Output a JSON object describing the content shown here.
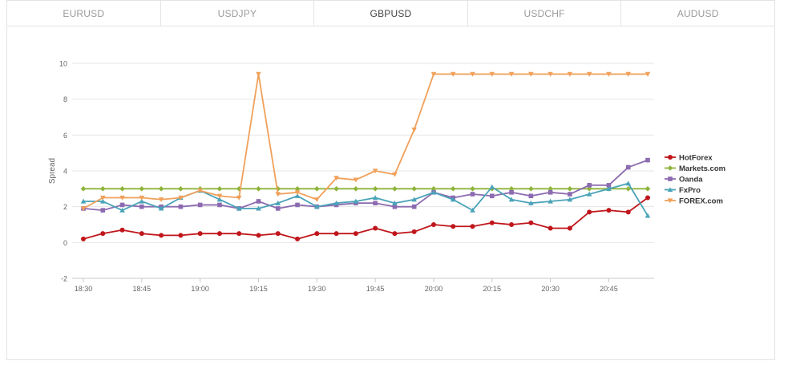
{
  "tabs": [
    {
      "label": "EURUSD",
      "active": false
    },
    {
      "label": "USDJPY",
      "active": false
    },
    {
      "label": "GBPUSD",
      "active": true
    },
    {
      "label": "USDCHF",
      "active": false
    },
    {
      "label": "AUDUSD",
      "active": false
    }
  ],
  "chart_data": {
    "type": "line",
    "title": "",
    "xlabel": "",
    "ylabel": "Spread",
    "ylim": [
      -2,
      10
    ],
    "yticks": [
      -2,
      0,
      2,
      4,
      6,
      8,
      10
    ],
    "x": [
      "18:30",
      "18:35",
      "18:40",
      "18:45",
      "18:50",
      "18:55",
      "19:00",
      "19:05",
      "19:10",
      "19:15",
      "19:20",
      "19:25",
      "19:30",
      "19:35",
      "19:40",
      "19:45",
      "19:50",
      "19:55",
      "20:00",
      "20:05",
      "20:10",
      "20:15",
      "20:20",
      "20:25",
      "20:30",
      "20:35",
      "20:40",
      "20:45",
      "20:50",
      "20:55"
    ],
    "xticks": [
      "18:30",
      "18:45",
      "19:00",
      "19:15",
      "19:30",
      "19:45",
      "20:00",
      "20:15",
      "20:30",
      "20:45"
    ],
    "grid": true,
    "legend_position": "right",
    "series": [
      {
        "name": "HotForex",
        "color": "#c0161b",
        "marker": "circle",
        "values": [
          0.2,
          0.5,
          0.7,
          0.5,
          0.4,
          0.4,
          0.5,
          0.5,
          0.5,
          0.4,
          0.5,
          0.2,
          0.5,
          0.5,
          0.5,
          0.8,
          0.5,
          0.6,
          1.0,
          0.9,
          0.9,
          1.1,
          1.0,
          1.1,
          0.8,
          0.8,
          1.7,
          1.8,
          1.7,
          2.5
        ]
      },
      {
        "name": "Markets.com",
        "color": "#8eb33b",
        "marker": "diamond",
        "values": [
          3,
          3,
          3,
          3,
          3,
          3,
          3,
          3,
          3,
          3,
          3,
          3,
          3,
          3,
          3,
          3,
          3,
          3,
          3,
          3,
          3,
          3,
          3,
          3,
          3,
          3,
          3,
          3,
          3,
          3
        ]
      },
      {
        "name": "Oanda",
        "color": "#8c6bb1",
        "marker": "square",
        "values": [
          1.9,
          1.8,
          2.1,
          2.0,
          2.0,
          2.0,
          2.1,
          2.1,
          1.9,
          2.3,
          1.9,
          2.1,
          2.0,
          2.1,
          2.2,
          2.2,
          2.0,
          2.0,
          2.8,
          2.5,
          2.7,
          2.6,
          2.8,
          2.6,
          2.8,
          2.7,
          3.2,
          3.2,
          4.2,
          4.6
        ]
      },
      {
        "name": "FxPro",
        "color": "#4aa3b8",
        "marker": "triangle",
        "values": [
          2.3,
          2.3,
          1.8,
          2.3,
          1.9,
          2.5,
          2.9,
          2.4,
          1.9,
          1.9,
          2.2,
          2.6,
          2.0,
          2.2,
          2.3,
          2.5,
          2.2,
          2.4,
          2.8,
          2.4,
          1.8,
          3.1,
          2.4,
          2.2,
          2.3,
          2.4,
          2.7,
          3.0,
          3.3,
          1.5
        ]
      },
      {
        "name": "FOREX.com",
        "color": "#f0a05a",
        "marker": "triangle-down",
        "values": [
          1.9,
          2.5,
          2.5,
          2.5,
          2.4,
          2.5,
          2.9,
          2.6,
          2.5,
          9.4,
          2.7,
          2.8,
          2.4,
          3.6,
          3.5,
          4.0,
          3.8,
          6.3,
          9.4,
          9.4,
          9.4,
          9.4,
          9.4,
          9.4,
          9.4,
          9.4,
          9.4,
          9.4,
          9.4,
          9.4
        ]
      }
    ]
  }
}
